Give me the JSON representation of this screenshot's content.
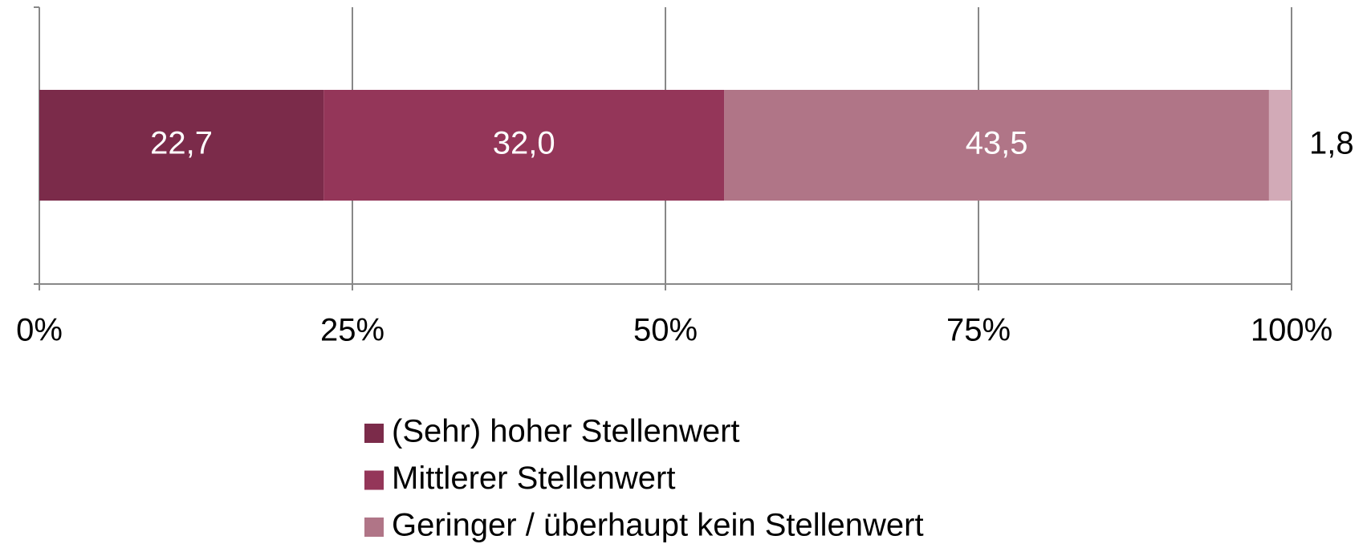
{
  "chart_data": {
    "type": "stacked_bar_horizontal",
    "categories": [
      null
    ],
    "series": [
      {
        "name": "(Sehr) hoher Stellenwert",
        "color": "#7b2b4a",
        "values": [
          22.7
        ],
        "value_labels": [
          "22,7"
        ]
      },
      {
        "name": "Mittlerer Stellenwert",
        "color": "#943659",
        "values": [
          32.0
        ],
        "value_labels": [
          "32,0"
        ]
      },
      {
        "name": "Geringer / überhaupt kein Stellenwert",
        "color": "#b07587",
        "values": [
          43.5
        ],
        "value_labels": [
          "43,5"
        ]
      },
      {
        "color": "#d2aab7",
        "values": [
          1.8
        ],
        "value_labels": [
          "1,8"
        ]
      }
    ],
    "xlim": [
      0,
      100
    ],
    "xticks": [
      {
        "value": 0,
        "label": "0%"
      },
      {
        "value": 25,
        "label": "25%"
      },
      {
        "value": 50,
        "label": "50%"
      },
      {
        "value": 75,
        "label": "75%"
      },
      {
        "value": 100,
        "label": "100%"
      }
    ],
    "grid": true,
    "legend": "bottom"
  }
}
